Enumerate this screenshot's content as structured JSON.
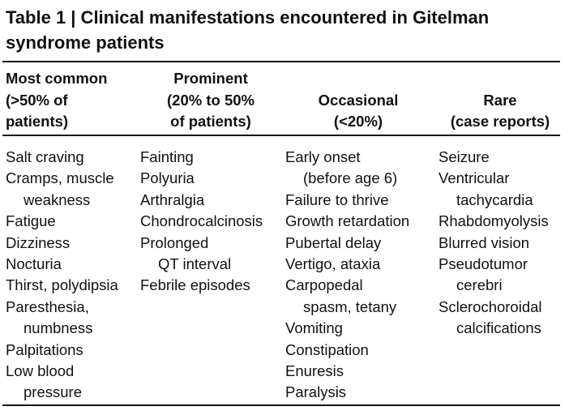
{
  "title": "Table 1 | Clinical manifestations encountered in Gitelman syndrome patients",
  "table": {
    "headers": [
      [
        "Most common",
        "(>50% of",
        "patients)"
      ],
      [
        "Prominent",
        "(20% to 50%",
        "of patients)"
      ],
      [
        "Occasional",
        "(<20%)"
      ],
      [
        "Rare",
        "(case reports)"
      ]
    ],
    "columns": [
      [
        [
          "Salt craving"
        ],
        [
          "Cramps, muscle",
          "weakness"
        ],
        [
          "Fatigue"
        ],
        [
          "Dizziness"
        ],
        [
          "Nocturia"
        ],
        [
          "Thirst, polydipsia"
        ],
        [
          "Paresthesia,",
          "numbness"
        ],
        [
          "Palpitations"
        ],
        [
          "Low blood",
          "pressure"
        ]
      ],
      [
        [
          "Fainting"
        ],
        [
          "Polyuria"
        ],
        [
          "Arthralgia"
        ],
        [
          "Chondrocalcinosis"
        ],
        [
          "Prolonged",
          "QT interval"
        ],
        [
          "Febrile episodes"
        ]
      ],
      [
        [
          "Early onset",
          "(before age 6)"
        ],
        [
          "Failure to thrive"
        ],
        [
          "Growth retardation"
        ],
        [
          "Pubertal delay"
        ],
        [
          "Vertigo, ataxia"
        ],
        [
          "Carpopedal",
          "spasm, tetany"
        ],
        [
          "Vomiting"
        ],
        [
          "Constipation"
        ],
        [
          "Enuresis"
        ],
        [
          "Paralysis"
        ]
      ],
      [
        [
          "Seizure"
        ],
        [
          "Ventricular",
          "tachycardia"
        ],
        [
          "Rhabdomyolysis"
        ],
        [
          "Blurred vision"
        ],
        [
          "Pseudotumor",
          "cerebri"
        ],
        [
          "Sclerochoroidal",
          "calcifications"
        ]
      ]
    ]
  }
}
